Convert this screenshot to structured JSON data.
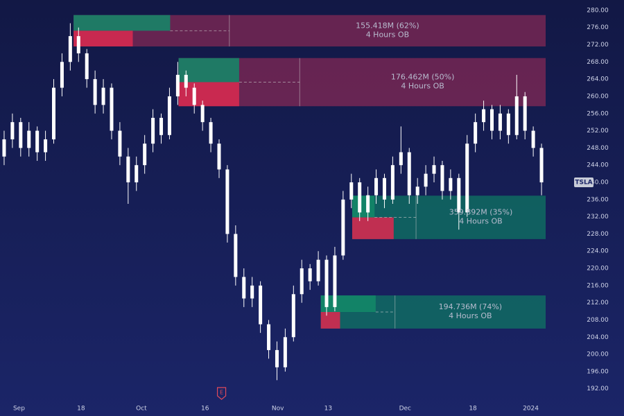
{
  "chart_data": {
    "type": "candlestick",
    "symbol": "TSLA",
    "series": [
      {
        "name": "TSLA",
        "color": "#ffffff",
        "values": [
          [
            246,
            252,
            244,
            250
          ],
          [
            250,
            256,
            248,
            254
          ],
          [
            254,
            255,
            246,
            248
          ],
          [
            248,
            254,
            246,
            252
          ],
          [
            252,
            253,
            245,
            247
          ],
          [
            247,
            252,
            245,
            250
          ],
          [
            250,
            264,
            249,
            262
          ],
          [
            262,
            270,
            260,
            268
          ],
          [
            268,
            277,
            266,
            274
          ],
          [
            274,
            276,
            268,
            270
          ],
          [
            270,
            271,
            262,
            264
          ],
          [
            264,
            266,
            256,
            258
          ],
          [
            258,
            264,
            256,
            262
          ],
          [
            262,
            263,
            250,
            252
          ],
          [
            252,
            254,
            244,
            246
          ],
          [
            246,
            248,
            235,
            240
          ],
          [
            240,
            246,
            238,
            244
          ],
          [
            244,
            251,
            242,
            249
          ],
          [
            249,
            257,
            247,
            255
          ],
          [
            255,
            256,
            249,
            251
          ],
          [
            251,
            262,
            250,
            260
          ],
          [
            260,
            268,
            258,
            265
          ],
          [
            265,
            266,
            260,
            262
          ],
          [
            262,
            263,
            256,
            258
          ],
          [
            258,
            259,
            252,
            254
          ],
          [
            254,
            255,
            247,
            249
          ],
          [
            249,
            250,
            241,
            243
          ],
          [
            243,
            244,
            226,
            228
          ],
          [
            228,
            230,
            216,
            218
          ],
          [
            218,
            220,
            211,
            213
          ],
          [
            213,
            218,
            211,
            216
          ],
          [
            216,
            217,
            205,
            207
          ],
          [
            207,
            208,
            199,
            201
          ],
          [
            201,
            203,
            194,
            197
          ],
          [
            197,
            206,
            196,
            204
          ],
          [
            204,
            216,
            203,
            214
          ],
          [
            214,
            222,
            212,
            220
          ],
          [
            220,
            221,
            215,
            217
          ],
          [
            217,
            224,
            216,
            222
          ],
          [
            222,
            223,
            209,
            211
          ],
          [
            211,
            225,
            210,
            223
          ],
          [
            223,
            238,
            222,
            236
          ],
          [
            236,
            242,
            234,
            240
          ],
          [
            240,
            241,
            231,
            233
          ],
          [
            233,
            239,
            231,
            237
          ],
          [
            237,
            243,
            235,
            241
          ],
          [
            241,
            242,
            234,
            236
          ],
          [
            236,
            246,
            235,
            244
          ],
          [
            244,
            253,
            242,
            247
          ],
          [
            247,
            248,
            235,
            237
          ],
          [
            237,
            241,
            235,
            239
          ],
          [
            239,
            244,
            237,
            242
          ],
          [
            242,
            246,
            240,
            244
          ],
          [
            244,
            245,
            236,
            238
          ],
          [
            238,
            243,
            236,
            241
          ],
          [
            241,
            242,
            229,
            233
          ],
          [
            233,
            251,
            232,
            249
          ],
          [
            249,
            256,
            247,
            254
          ],
          [
            254,
            259,
            252,
            257
          ],
          [
            257,
            258,
            250,
            252
          ],
          [
            252,
            258,
            250,
            256
          ],
          [
            256,
            257,
            249,
            251
          ],
          [
            251,
            265,
            250,
            260
          ],
          [
            260,
            261,
            250,
            252
          ],
          [
            252,
            253,
            246,
            248
          ],
          [
            248,
            249,
            237,
            240
          ]
        ]
      }
    ],
    "bearish_color": "#8a2a55",
    "bullish_color": "#0e7a64",
    "zones": [
      {
        "top": 278.9,
        "bottom": 271.6,
        "x_start": 8.4,
        "x_end": 65.5,
        "strength": 62,
        "label": "155.418M (62%)",
        "sublabel": "4 Hours OB",
        "side": "bearish"
      },
      {
        "top": 268.9,
        "bottom": 257.7,
        "x_start": 21.1,
        "x_end": 65.5,
        "strength": 50,
        "label": "176.462M (50%)",
        "sublabel": "4 Hours OB",
        "side": "bearish"
      },
      {
        "top": 236.9,
        "bottom": 226.8,
        "x_start": 42.1,
        "x_end": 65.5,
        "strength": 35,
        "label": "359.892M (35%)",
        "sublabel": "4 Hours OB",
        "side": "bullish"
      },
      {
        "top": 213.7,
        "bottom": 206.0,
        "x_start": 38.3,
        "x_end": 65.5,
        "strength": 74,
        "label": "194.736M (74%)",
        "sublabel": "4 Hours OB",
        "side": "bullish"
      }
    ],
    "event": {
      "label": "E",
      "x": 26.3
    },
    "xlim": [
      -0.5,
      65.5
    ],
    "ylim": [
      189.7,
      282.4
    ],
    "xticks": [
      {
        "value": 1.8,
        "label": "Sep"
      },
      {
        "value": 9.3,
        "label": "18"
      },
      {
        "value": 16.6,
        "label": "Oct"
      },
      {
        "value": 24.3,
        "label": "16"
      },
      {
        "value": 33.1,
        "label": "Nov"
      },
      {
        "value": 39.2,
        "label": "13"
      },
      {
        "value": 48.5,
        "label": "Dec"
      },
      {
        "value": 56.7,
        "label": "18"
      },
      {
        "value": 63.7,
        "label": "2024"
      }
    ],
    "yticks": [
      {
        "value": 192,
        "label": "192.00"
      },
      {
        "value": 196,
        "label": "196.00"
      },
      {
        "value": 200,
        "label": "200.00"
      },
      {
        "value": 204,
        "label": "204.00"
      },
      {
        "value": 208,
        "label": "208.00"
      },
      {
        "value": 212,
        "label": "212.00"
      },
      {
        "value": 216,
        "label": "216.00"
      },
      {
        "value": 220,
        "label": "220.00"
      },
      {
        "value": 224,
        "label": "224.00"
      },
      {
        "value": 228,
        "label": "228.00"
      },
      {
        "value": 232,
        "label": "232.00"
      },
      {
        "value": 236,
        "label": "236.00"
      },
      {
        "value": 240,
        "label": "240.00"
      },
      {
        "value": 244,
        "label": "244.00"
      },
      {
        "value": 248,
        "label": "248.00"
      },
      {
        "value": 252,
        "label": "252.00"
      },
      {
        "value": 256,
        "label": "256.00"
      },
      {
        "value": 260,
        "label": "260.00"
      },
      {
        "value": 264,
        "label": "264.00"
      },
      {
        "value": 268,
        "label": "268.00"
      },
      {
        "value": 272,
        "label": "272.00"
      },
      {
        "value": 276,
        "label": "276.00"
      },
      {
        "value": 280,
        "label": "280.00"
      }
    ]
  }
}
